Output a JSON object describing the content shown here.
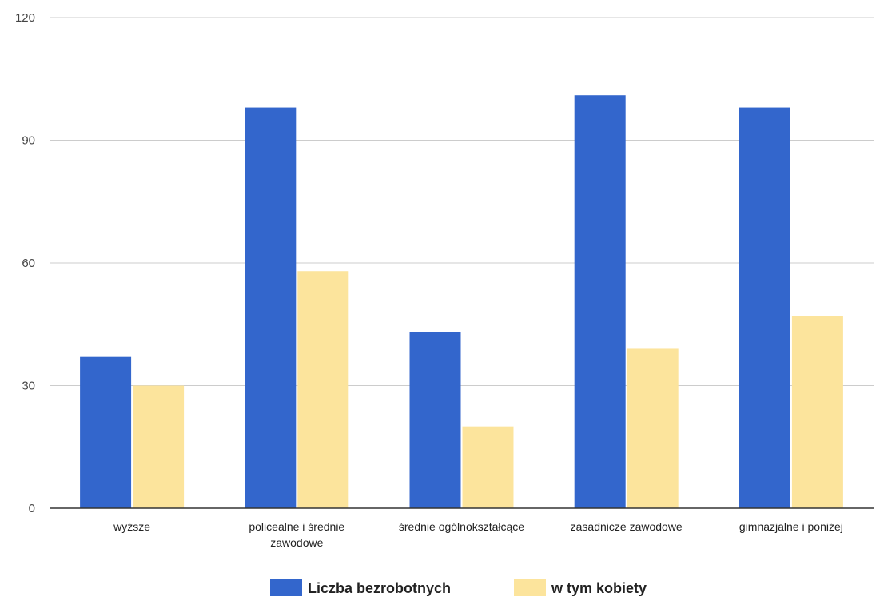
{
  "chart_data": {
    "type": "bar",
    "title": "",
    "xlabel": "",
    "ylabel": "",
    "ylim": [
      0,
      120
    ],
    "yticks": [
      0,
      30,
      60,
      90,
      120
    ],
    "grid": true,
    "legend_position": "bottom",
    "categories": [
      [
        "wyższe"
      ],
      [
        "policealne i średnie",
        "zawodowe"
      ],
      [
        "średnie ogólnokształcące"
      ],
      [
        "zasadnicze zawodowe"
      ],
      [
        "gimnazjalne i poniżej"
      ]
    ],
    "series": [
      {
        "name": "Liczba bezrobotnych",
        "color": "#3366cc",
        "values": [
          37,
          98,
          43,
          101,
          98
        ]
      },
      {
        "name": "w tym kobiety",
        "color": "#fce49c",
        "values": [
          30,
          58,
          20,
          39,
          47
        ]
      }
    ]
  }
}
